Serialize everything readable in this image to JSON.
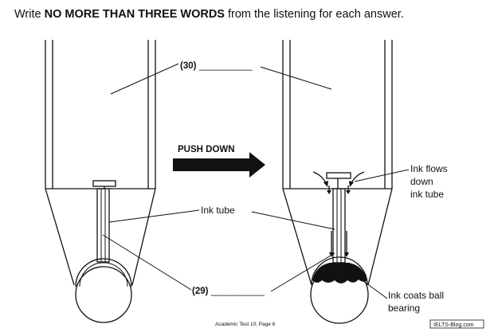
{
  "instruction": {
    "prefix": "Write ",
    "emphasis": "NO MORE THAN THREE WORDS",
    "suffix": " from the listening for each answer."
  },
  "diagram": {
    "arrow_label": "PUSH DOWN",
    "labels": {
      "q30": "(30)",
      "q30_blank": "__________",
      "ink_tube": "Ink tube",
      "q29": "(29)",
      "q29_blank": "__________",
      "ink_flows": [
        "Ink flows",
        "down",
        "ink tube"
      ],
      "ink_coats": [
        "Ink coats ball",
        "bearing"
      ]
    }
  },
  "footer": {
    "page": "Academic Test 10; Page 6",
    "watermark": "IELTS-Blog.com"
  }
}
